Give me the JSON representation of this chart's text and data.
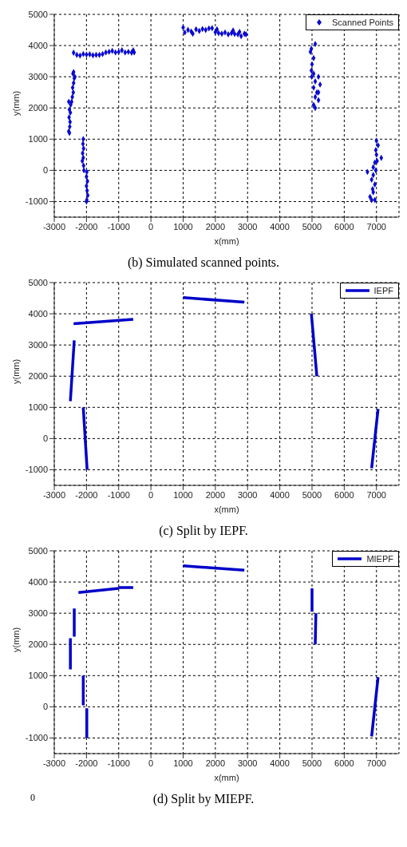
{
  "chart_data": [
    {
      "type": "scatter",
      "xlabel": "x(mm)",
      "ylabel": "y(mm)",
      "xlim": [
        -3000,
        7700
      ],
      "ylim": [
        -1500,
        5000
      ],
      "xticks": [
        -3000,
        -2000,
        -1000,
        0,
        1000,
        2000,
        3000,
        4000,
        5000,
        6000,
        7000
      ],
      "yticks": [
        -1000,
        0,
        1000,
        2000,
        3000,
        4000,
        5000
      ],
      "grid": true,
      "legend": "top right",
      "marker": "diamond",
      "annotations": [
        "(b) Simulated scanned points."
      ],
      "series": [
        {
          "name": "Scanned Points",
          "color": "#0a0ad0",
          "x": [
            -2530,
            -2550,
            -2520,
            -2510,
            -2540,
            -2500,
            -2530,
            -2490,
            -2550,
            -2460,
            -2440,
            -2410,
            -2430,
            -2400,
            -2380,
            -2420,
            -2400,
            -2360,
            -2100,
            -2110,
            -2090,
            -2120,
            -2100,
            -2130,
            -2090,
            -2080,
            -1990,
            -2000,
            -1970,
            -2000,
            -1980,
            -1960,
            -1990,
            -2000,
            -2400,
            -2300,
            -2200,
            -2100,
            -2000,
            -1900,
            -1800,
            -1700,
            -1600,
            -1500,
            -1400,
            -1300,
            -1200,
            -1100,
            -1000,
            -900,
            -800,
            -700,
            -600,
            -550,
            -520,
            1000,
            1050,
            1150,
            1250,
            1300,
            1400,
            1500,
            1600,
            1700,
            1800,
            1900,
            2000,
            2050,
            2100,
            2200,
            2300,
            2400,
            2500,
            2550,
            2600,
            2700,
            2750,
            2800,
            2900,
            2950,
            5100,
            4980,
            4950,
            5050,
            5000,
            4980,
            5050,
            4990,
            5200,
            5100,
            5250,
            5050,
            5150,
            5200,
            5100,
            5200,
            5050,
            5100,
            7000,
            7050,
            6980,
            7000,
            7150,
            7020,
            6950,
            6900,
            6980,
            6720,
            6900,
            6850,
            6950,
            6880,
            6800,
            6900,
            6950,
            6850
          ],
          "values": [
            1200,
            1250,
            1400,
            1550,
            1700,
            1850,
            1950,
            2100,
            2200,
            2200,
            2350,
            2500,
            2650,
            2800,
            2950,
            3100,
            3150,
            3000,
            1000,
            850,
            700,
            550,
            400,
            300,
            150,
            0,
            -50,
            -200,
            -350,
            -500,
            -650,
            -800,
            -950,
            -1000,
            3770,
            3700,
            3680,
            3730,
            3710,
            3720,
            3690,
            3700,
            3700,
            3730,
            3780,
            3800,
            3830,
            3780,
            3800,
            3850,
            3780,
            3800,
            3770,
            3850,
            3780,
            4580,
            4420,
            4500,
            4450,
            4380,
            4520,
            4470,
            4530,
            4500,
            4550,
            4560,
            4430,
            4520,
            4400,
            4380,
            4420,
            4360,
            4400,
            4480,
            4370,
            4360,
            4440,
            4300,
            4380,
            4360,
            4050,
            3900,
            3800,
            3600,
            3400,
            3200,
            3100,
            3000,
            3000,
            2850,
            2750,
            2650,
            2500,
            2500,
            2350,
            2250,
            2100,
            2000,
            950,
            800,
            650,
            500,
            400,
            300,
            250,
            100,
            0,
            -50,
            -150,
            -300,
            -450,
            -600,
            -850,
            -700,
            -950,
            -950
          ]
        }
      ]
    },
    {
      "type": "line",
      "xlabel": "x(mm)",
      "ylabel": "y(mm)",
      "xlim": [
        -3000,
        7700
      ],
      "ylim": [
        -1500,
        5000
      ],
      "xticks": [
        -3000,
        -2000,
        -1000,
        0,
        1000,
        2000,
        3000,
        4000,
        5000,
        6000,
        7000
      ],
      "yticks": [
        -1000,
        0,
        1000,
        2000,
        3000,
        4000,
        5000
      ],
      "grid": true,
      "legend": "top right",
      "annotations": [
        "(c) Split by IEPF."
      ],
      "series": [
        {
          "name": "IEPF",
          "color": "#0000c8",
          "x": [
            -2500,
            -2380,
            null,
            -2100,
            -1980,
            null,
            -2400,
            -550,
            null,
            1000,
            2900,
            null,
            4980,
            5150,
            null,
            6850,
            7050
          ],
          "values": [
            1200,
            3150,
            null,
            1000,
            -1000,
            null,
            3680,
            3820,
            null,
            4520,
            4370,
            null,
            4000,
            2000,
            null,
            -950,
            950
          ]
        }
      ]
    },
    {
      "type": "line",
      "xlabel": "x(mm)",
      "ylabel": "y(mm)",
      "xlim": [
        -3000,
        7700
      ],
      "ylim": [
        -1500,
        5000
      ],
      "xticks": [
        -3000,
        -2000,
        -1000,
        0,
        1000,
        2000,
        3000,
        4000,
        5000,
        6000,
        7000
      ],
      "yticks": [
        -1000,
        0,
        1000,
        2000,
        3000,
        4000,
        5000
      ],
      "grid": true,
      "legend": "top right",
      "annotations": [
        "0",
        "(d) Split by MIEPF."
      ],
      "series": [
        {
          "name": "MIEPF",
          "color": "#0000c8",
          "x": [
            -2500,
            -2500,
            null,
            -2380,
            -2380,
            null,
            -2100,
            -2100,
            null,
            -1990,
            -1990,
            null,
            -2250,
            -1000,
            null,
            -1000,
            -550,
            null,
            1000,
            2900,
            null,
            5000,
            5000,
            null,
            5120,
            5100,
            null,
            6850,
            7050
          ],
          "values": [
            1200,
            2200,
            null,
            2250,
            3150,
            null,
            50,
            1000,
            null,
            -50,
            -1000,
            null,
            3660,
            3800,
            null,
            3820,
            3820,
            null,
            4520,
            4380,
            null,
            3800,
            3050,
            null,
            3000,
            2000,
            null,
            -950,
            950
          ]
        }
      ]
    }
  ]
}
